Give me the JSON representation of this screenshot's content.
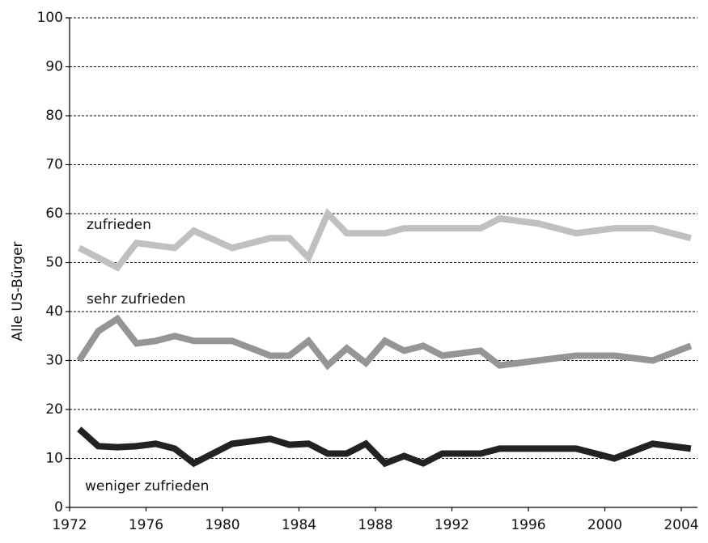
{
  "chart_data": {
    "type": "line",
    "y_label": "Alle US-Bürger",
    "x": [
      1972.5,
      1973.5,
      1974.5,
      1975.5,
      1976.5,
      1977.5,
      1978.5,
      1980.5,
      1982.5,
      1983.5,
      1984.5,
      1985.5,
      1986.5,
      1987.5,
      1988.5,
      1989.5,
      1990.5,
      1991.5,
      1993.5,
      1994.5,
      1996.5,
      1998.5,
      2000.5,
      2002.5,
      2004.5
    ],
    "series": [
      {
        "name": "zufrieden",
        "color": "#c0c0c0",
        "values": [
          53,
          51,
          49,
          54,
          53.5,
          53,
          56.5,
          53,
          55,
          55,
          51,
          60,
          56,
          56,
          56,
          57,
          57,
          57,
          57,
          59,
          58,
          56,
          57,
          57,
          55
        ]
      },
      {
        "name": "sehr zufrieden",
        "color": "#959595",
        "values": [
          30,
          36,
          38.5,
          33.5,
          34,
          35,
          34,
          34,
          31,
          31,
          34,
          29,
          32.5,
          29.5,
          34,
          32,
          33,
          31,
          32,
          29,
          30,
          31,
          31,
          30,
          33
        ]
      },
      {
        "name": "weniger zufrieden",
        "color": "#222222",
        "values": [
          16,
          12.5,
          12.3,
          12.5,
          13,
          12,
          9,
          13,
          14,
          12.8,
          13,
          11,
          11,
          13,
          9,
          10.5,
          9,
          11,
          11,
          12,
          12,
          12,
          10,
          13,
          12
        ]
      }
    ],
    "xlim": [
      1972,
      2004
    ],
    "xticks": [
      1972,
      1976,
      1980,
      1984,
      1988,
      1992,
      1996,
      2000,
      2004
    ],
    "ylim": [
      0,
      100
    ],
    "yticks": [
      0,
      10,
      20,
      30,
      40,
      50,
      60,
      70,
      80,
      90,
      100
    ],
    "grid": true
  }
}
